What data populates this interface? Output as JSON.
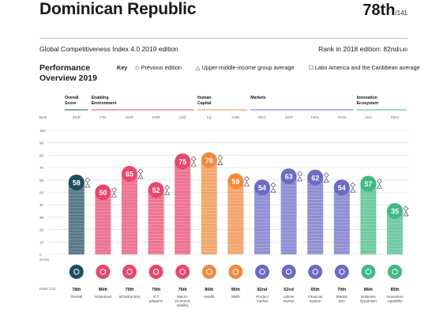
{
  "header": {
    "country": "Dominican Republic",
    "rank": "78th",
    "rank_of": "/141",
    "edition": "Global Competitiveness Index 4.0 2019 edition",
    "rank_2018_text": "Rank in 2018 edition: 82nd",
    "rank_2018_of": "/140"
  },
  "performance": {
    "title_line1": "Performance",
    "title_line2": "Overview 2019",
    "key_label": "Key",
    "key_previous": "Previous edition",
    "key_group": "Upper-middle-income group average",
    "key_region": "Latin America and the Caribbean average"
  },
  "labels": {
    "best": "Best",
    "score": "Score",
    "rank": "Rank /141"
  },
  "groups": [
    {
      "name": [
        "Overall",
        "Score"
      ],
      "color": "#1f4e5f"
    },
    {
      "name": [
        "Enabling",
        "Environment"
      ],
      "color": "#e8476e"
    },
    {
      "name": [
        "Human",
        "Capital"
      ],
      "color": "#f08a3e"
    },
    {
      "name": [
        "Markets"
      ],
      "color": "#6a6bc3"
    },
    {
      "name": [
        "Innovation",
        "Ecosystem"
      ],
      "color": "#3fb985"
    }
  ],
  "chart_data": {
    "type": "bar",
    "ylim": [
      0,
      100
    ],
    "yticks": [
      0,
      10,
      20,
      30,
      40,
      50,
      60,
      70,
      80,
      90,
      100
    ],
    "categories": [
      "Overall",
      "Institutions",
      "Infrastructure",
      "ICT adoption",
      "Macro-economic stability",
      "Health",
      "Skills",
      "Product market",
      "Labour market",
      "Financial system",
      "Market size",
      "Business dynamism",
      "Innovation capability"
    ],
    "category_label_lines": [
      [
        "Overall"
      ],
      [
        "Institutions"
      ],
      [
        "Infrastructure"
      ],
      [
        "ICT",
        "adoption"
      ],
      [
        "Macro-",
        "economic",
        "stability"
      ],
      [
        "Health"
      ],
      [
        "Skills"
      ],
      [
        "Product",
        "market"
      ],
      [
        "Labour",
        "market"
      ],
      [
        "Financial",
        "system"
      ],
      [
        "Market",
        "size"
      ],
      [
        "Business",
        "dynamism"
      ],
      [
        "Innovation",
        "capability"
      ]
    ],
    "values": [
      58,
      50,
      65,
      52,
      75,
      76,
      59,
      54,
      63,
      62,
      54,
      57,
      35
    ],
    "ranks": [
      "78th",
      "86th",
      "79th",
      "79th",
      "76th",
      "86th",
      "86th",
      "82nd",
      "52nd",
      "65th",
      "70th",
      "86th",
      "85th"
    ],
    "best": [
      "SGP",
      "FIN",
      "SGP",
      "KOR",
      "(33)",
      "(4)",
      "CHE",
      "HKG",
      "SGP",
      "HKG",
      "CHN",
      "USA",
      "DEU"
    ],
    "group_index": [
      0,
      1,
      1,
      1,
      1,
      2,
      2,
      3,
      3,
      3,
      3,
      4,
      4
    ],
    "icons": [
      "target-icon",
      "institution-icon",
      "road-icon",
      "device-icon",
      "chart-icon",
      "heart-icon",
      "skills-icon",
      "product-icon",
      "labour-icon",
      "finance-icon",
      "market-size-icon",
      "business-icon",
      "lightbulb-icon"
    ]
  }
}
